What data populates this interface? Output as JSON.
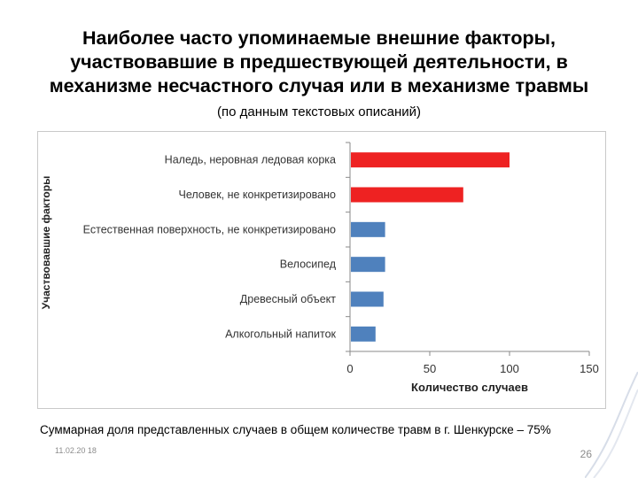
{
  "slide": {
    "title_lines": [
      "Наиболее часто упоминаемые внешние факторы,",
      "участвовавшие в предшествующей деятельности, в",
      "механизме несчастного случая или в механизме травмы"
    ],
    "subtitle": "(по данным текстовых описаний)",
    "footnote": "Суммарная доля представленных случаев в общем количестве травм в  г. Шенкурске – 75%",
    "date": "11.02.20 18",
    "page_number": "26"
  },
  "chart_data": {
    "type": "bar",
    "orientation": "horizontal",
    "categories": [
      "Наледь, неровная ледовая корка",
      "Человек, не конкретизировано",
      "Естественная поверхность, не конкретизировано",
      "Велосипед",
      "Древесный объект",
      "Алкогольный напиток"
    ],
    "values": [
      100,
      71,
      22,
      22,
      21,
      16
    ],
    "colors": [
      "#ee2222",
      "#ee2222",
      "#4f81bd",
      "#4f81bd",
      "#4f81bd",
      "#4f81bd"
    ],
    "xlabel": "Количество случаев",
    "ylabel": "Участвовавшие факторы",
    "xlim": [
      0,
      150
    ],
    "xticks": [
      0,
      50,
      100,
      150
    ],
    "grid": false,
    "legend": "none"
  }
}
